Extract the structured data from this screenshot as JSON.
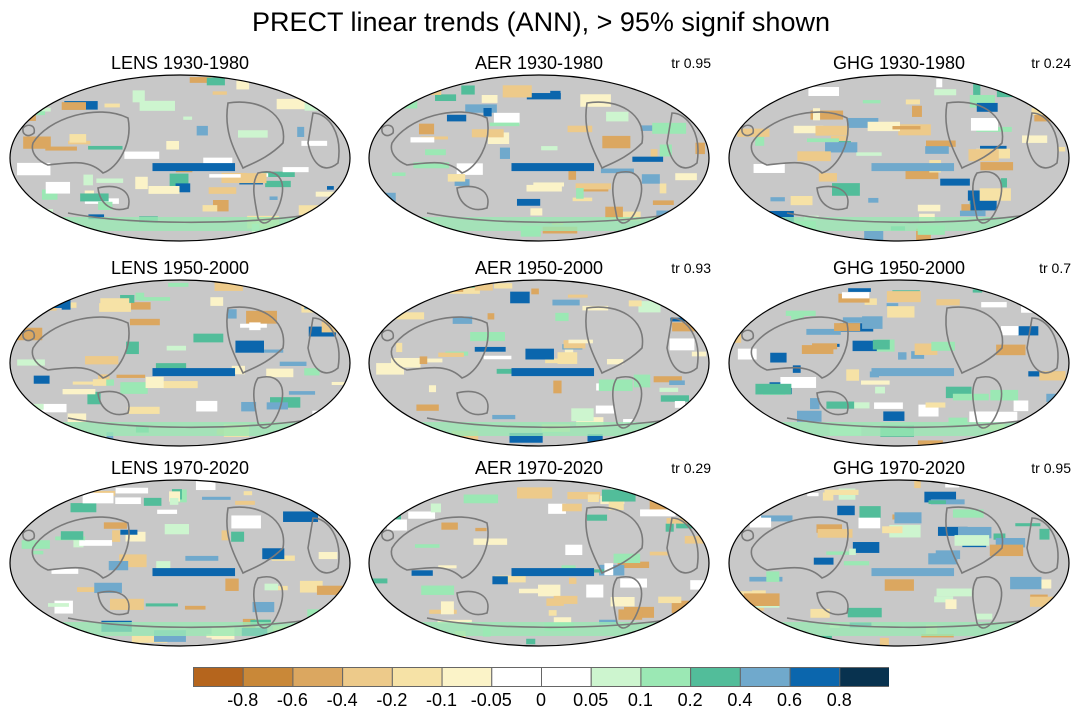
{
  "title": "PRECT linear trends (ANN), > 95% signif shown",
  "panels": [
    {
      "title": "LENS 1930-1980",
      "tr": ""
    },
    {
      "title": "AER 1930-1980",
      "tr": "tr 0.95"
    },
    {
      "title": "GHG 1930-1980",
      "tr": "tr 0.24"
    },
    {
      "title": "LENS 1950-2000",
      "tr": ""
    },
    {
      "title": "AER 1950-2000",
      "tr": "tr 0.93"
    },
    {
      "title": "GHG 1950-2000",
      "tr": "tr 0.7"
    },
    {
      "title": "LENS 1970-2020",
      "tr": ""
    },
    {
      "title": "AER 1970-2020",
      "tr": "tr 0.29"
    },
    {
      "title": "GHG 1970-2020",
      "tr": "tr 0.95"
    }
  ],
  "colorbar": {
    "labels": [
      "-0.8",
      "-0.6",
      "-0.4",
      "-0.2",
      "-0.1",
      "-0.05",
      "0",
      "0.05",
      "0.1",
      "0.2",
      "0.4",
      "0.6",
      "0.8"
    ],
    "colors": [
      "#b5651d",
      "#c98838",
      "#dba760",
      "#edca8a",
      "#f6e2a6",
      "#fbf3c8",
      "#ffffff",
      "#ffffff",
      "#cdf5cf",
      "#9be8b4",
      "#52bd9a",
      "#70a9cc",
      "#0b66ad",
      "#08324f"
    ]
  },
  "map_colors": {
    "insignificant": "#c8c8c8",
    "coastline": "#7a7a7a",
    "border": "#000000"
  }
}
